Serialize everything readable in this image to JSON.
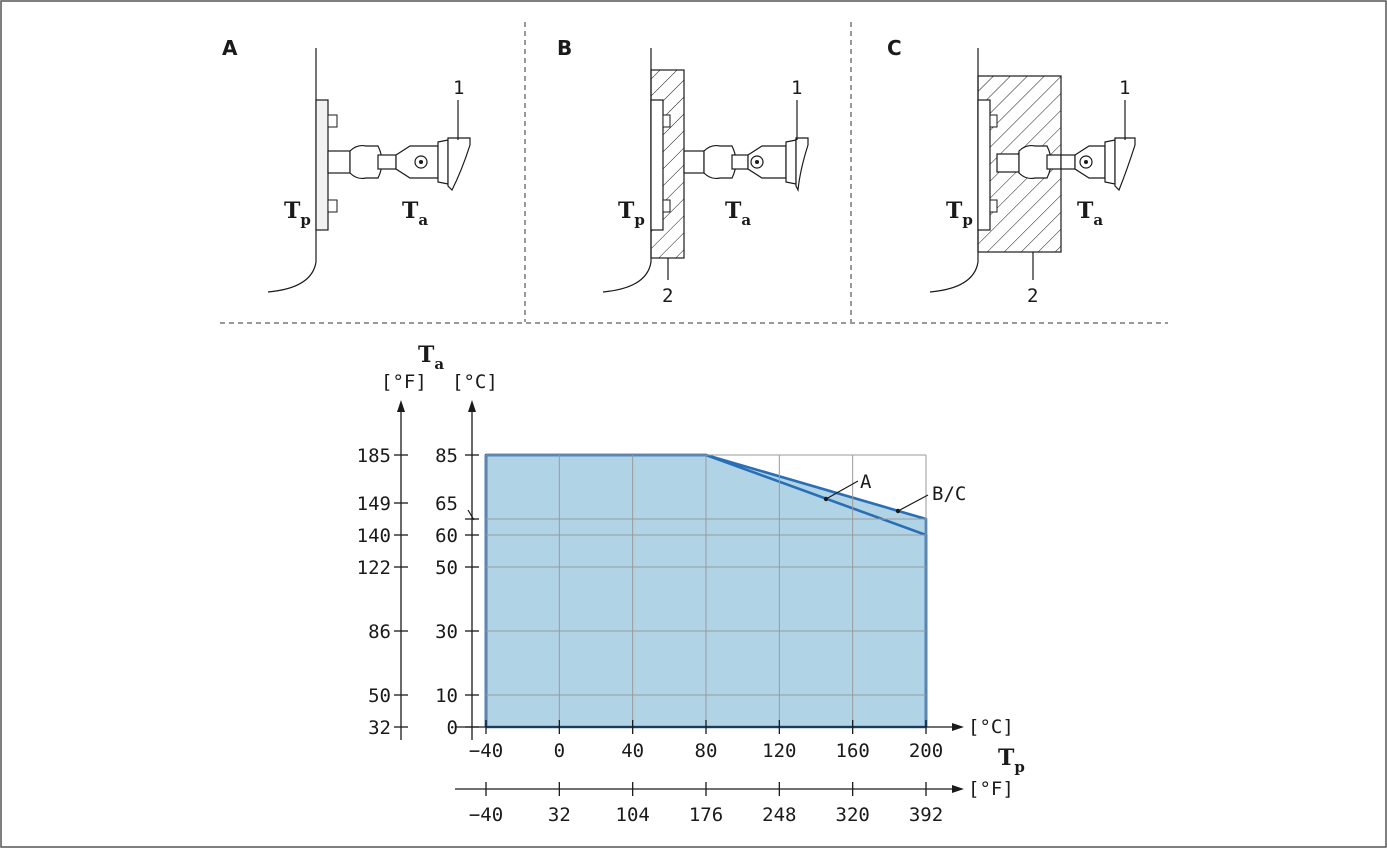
{
  "panels": [
    {
      "id": "A",
      "label": "A",
      "callout_1": "1",
      "callout_2": "",
      "tp": "T",
      "tp_sub": "p",
      "ta": "T",
      "ta_sub": "a"
    },
    {
      "id": "B",
      "label": "B",
      "callout_1": "1",
      "callout_2": "2",
      "tp": "T",
      "tp_sub": "p",
      "ta": "T",
      "ta_sub": "a"
    },
    {
      "id": "C",
      "label": "C",
      "callout_1": "1",
      "callout_2": "2",
      "tp": "T",
      "tp_sub": "p",
      "ta": "T",
      "ta_sub": "a"
    }
  ],
  "chart_data": {
    "type": "area",
    "y_axis_symbol": "T",
    "y_axis_symbol_sub": "a",
    "x_axis_symbol": "T",
    "x_axis_symbol_sub": "p",
    "y_unit_f": "[°F]",
    "y_unit_c": "[°C]",
    "x_unit_c": "[°C]",
    "x_unit_f": "[°F]",
    "x_ticks_c": [
      -40,
      0,
      40,
      80,
      120,
      160,
      200
    ],
    "x_tick_labels_c": [
      "−40",
      "0",
      "40",
      "80",
      "120",
      "160",
      "200"
    ],
    "x_ticks_f_labels": [
      "−40",
      "32",
      "104",
      "176",
      "248",
      "320",
      "392"
    ],
    "y_ticks_c": [
      0,
      10,
      30,
      50,
      60,
      65,
      85
    ],
    "y_ticks_f_labels": [
      "32",
      "50",
      "86",
      "122",
      "140",
      "149",
      "185"
    ],
    "xlim": [
      -40,
      200
    ],
    "ylim": [
      0,
      85
    ],
    "series": [
      {
        "name": "A",
        "x": [
          -40,
          -40,
          80,
          200,
          200
        ],
        "y": [
          0,
          85,
          85,
          60,
          0
        ]
      },
      {
        "name": "B/C",
        "x": [
          -40,
          -40,
          80,
          200,
          200
        ],
        "y": [
          0,
          85,
          85,
          65,
          0
        ]
      }
    ],
    "fill_color": "#b0d4e6",
    "line_color": "#2a6fb5"
  }
}
